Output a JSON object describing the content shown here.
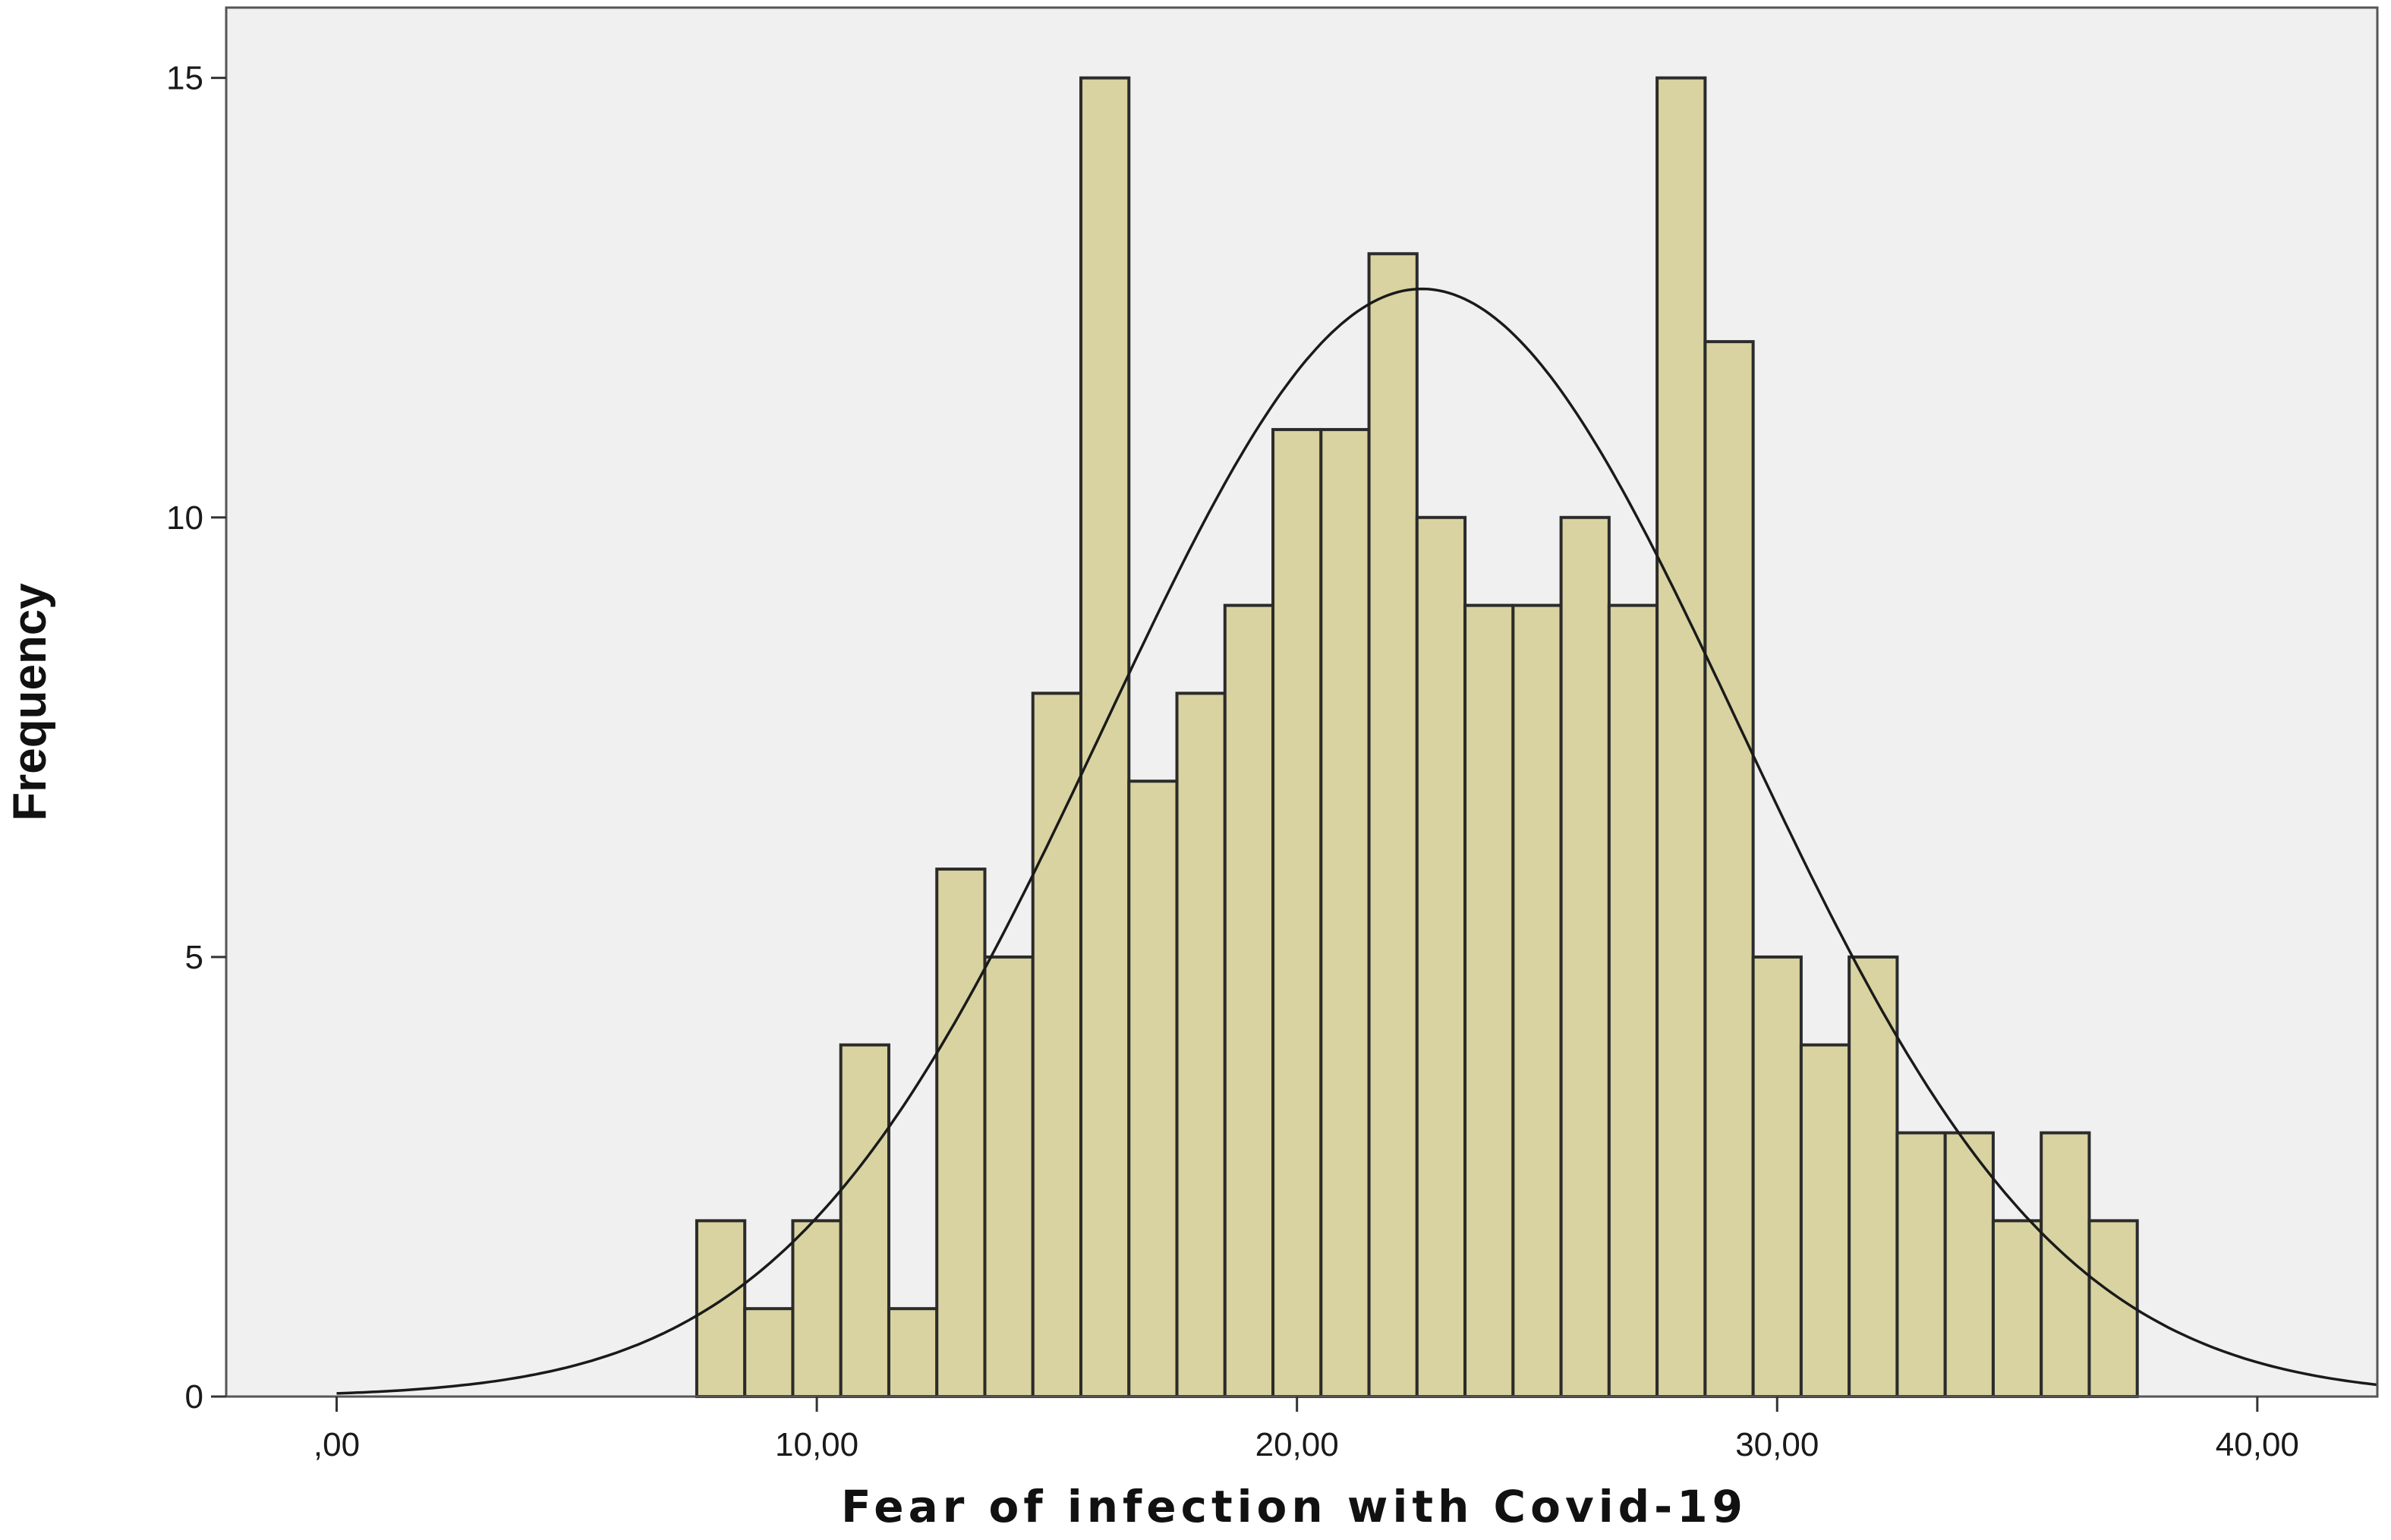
{
  "chart_data": {
    "type": "bar",
    "title": "",
    "xlabel": "Fear of infection with Covid-19",
    "ylabel": "Frequency",
    "xlim": [
      -2.3,
      42.5
    ],
    "ylim": [
      0,
      15.8
    ],
    "x_ticks": [
      0,
      10,
      20,
      30,
      40
    ],
    "x_tick_labels": [
      ",00",
      "10,00",
      "20,00",
      "30,00",
      "40,00"
    ],
    "y_ticks": [
      0,
      5,
      10,
      15
    ],
    "y_tick_labels": [
      "0",
      "5",
      "10",
      "15"
    ],
    "bin_width": 1,
    "bin_starts": [
      7.5,
      8.5,
      9.5,
      10.5,
      11.5,
      12.5,
      13.5,
      14.5,
      15.5,
      16.5,
      17.5,
      18.5,
      19.5,
      20.5,
      21.5,
      22.5,
      23.5,
      24.5,
      25.5,
      26.5,
      27.5,
      28.5,
      29.5,
      30.5,
      31.5,
      32.5,
      33.5,
      34.5,
      35.5,
      36.5
    ],
    "values": [
      2,
      1,
      2,
      4,
      1,
      6,
      5,
      8,
      15,
      7,
      8,
      9,
      11,
      11,
      13,
      10,
      9,
      9,
      10,
      9,
      15,
      12,
      5,
      4,
      5,
      3,
      3,
      2,
      3,
      2
    ],
    "normal_curve": {
      "mean": 22.6,
      "sd": 6.6,
      "peak": 12.6
    },
    "grid": false,
    "legend": "none",
    "colors": {
      "bar_fill": "#d8d3a0",
      "bar_stroke": "#2b2b2b",
      "plot_background": "#f0f0f0",
      "curve": "#1a1a1a"
    }
  }
}
